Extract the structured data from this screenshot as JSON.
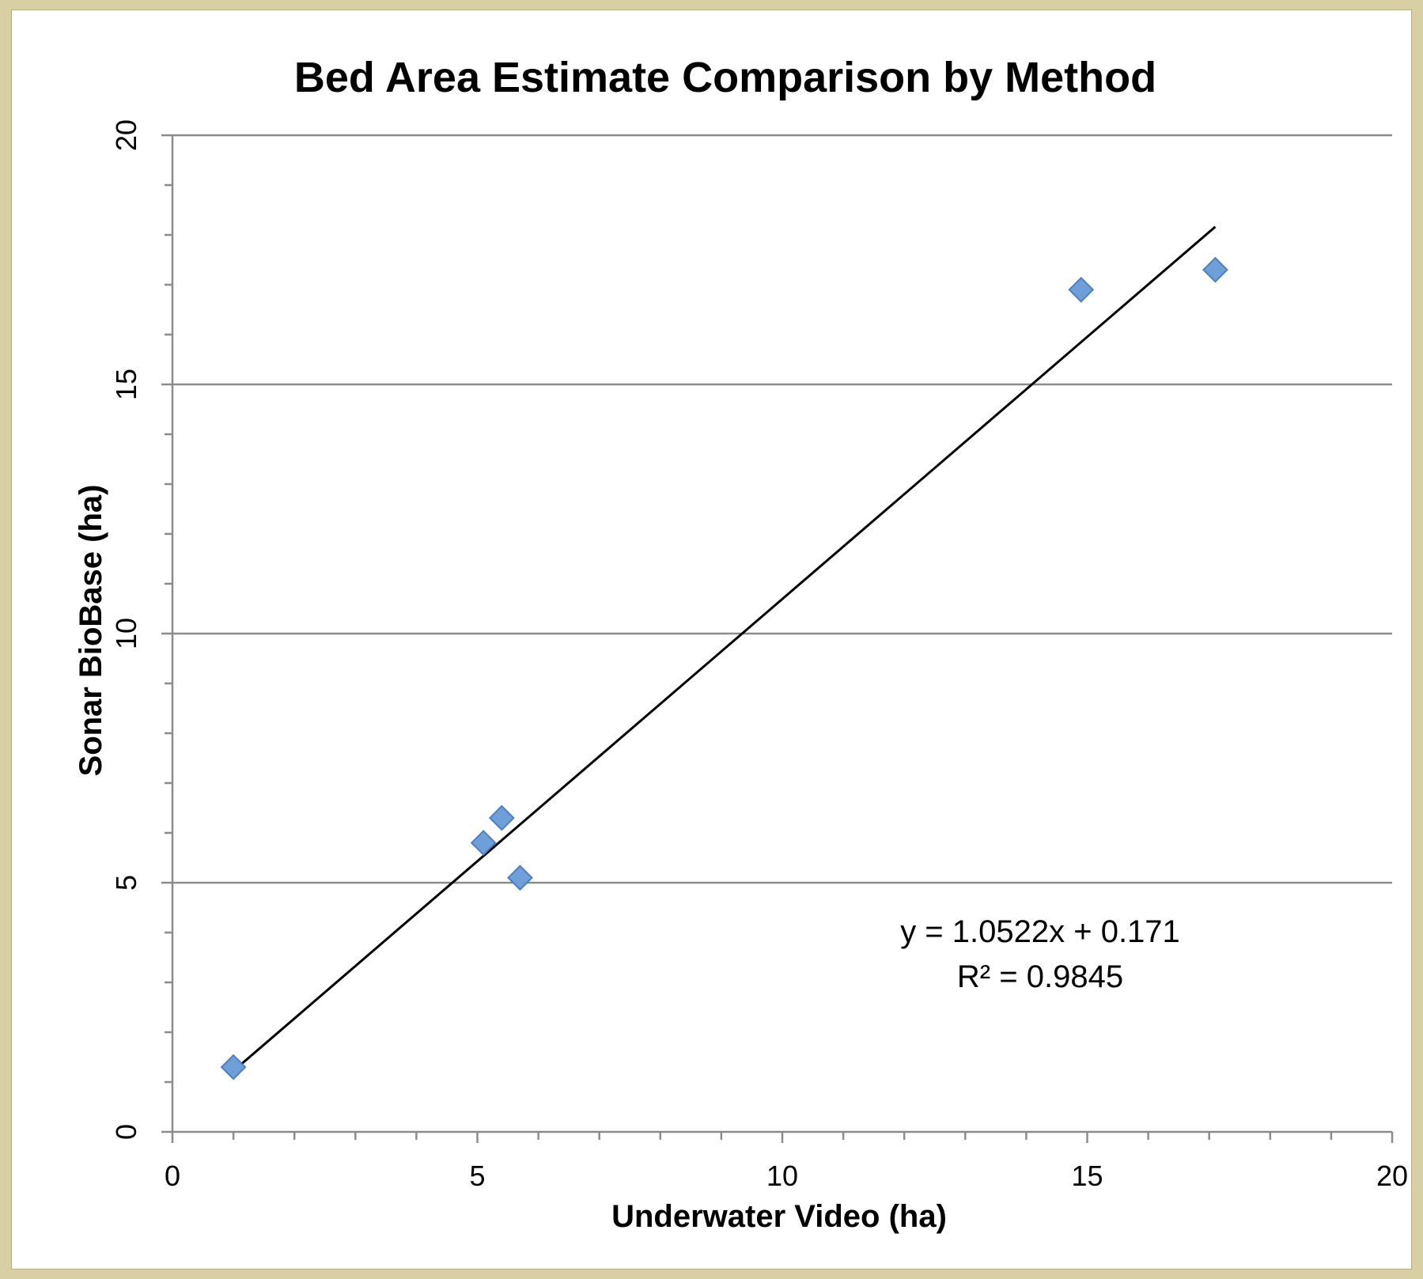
{
  "chart_data": {
    "type": "scatter",
    "title": "Bed Area Estimate Comparison by Method",
    "xlabel": "Underwater Video (ha)",
    "ylabel": "Sonar BioBase (ha)",
    "xlim": [
      0,
      20
    ],
    "ylim": [
      0,
      20
    ],
    "x_ticks": [
      "0",
      "5",
      "10",
      "15",
      "20"
    ],
    "y_ticks": [
      "0",
      "5",
      "10",
      "15",
      "20"
    ],
    "grid": "horizontal",
    "series": [
      {
        "points": [
          {
            "x": 1.0,
            "y": 1.3
          },
          {
            "x": 5.1,
            "y": 5.8
          },
          {
            "x": 5.4,
            "y": 6.3
          },
          {
            "x": 5.7,
            "y": 5.1
          },
          {
            "x": 14.9,
            "y": 16.9
          },
          {
            "x": 17.1,
            "y": 17.3
          }
        ],
        "color": "#6f9fd8"
      }
    ],
    "trendline": {
      "slope": 1.0522,
      "intercept": 0.171,
      "x_range": [
        1.0,
        17.1
      ],
      "color": "#000000"
    },
    "annotations": [
      "y = 1.0522x + 0.171",
      "R² = 0.9845"
    ]
  }
}
